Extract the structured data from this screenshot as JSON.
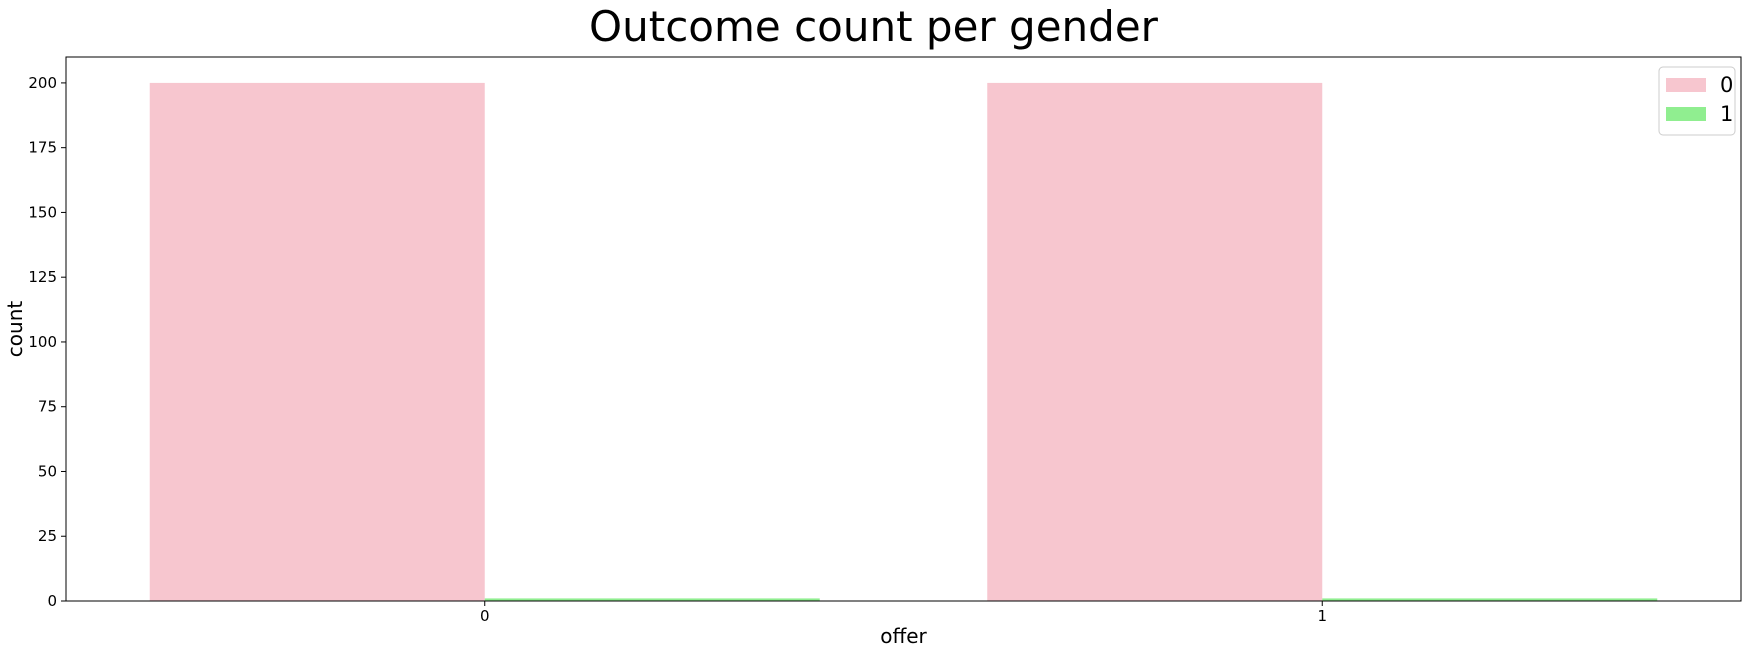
{
  "chart_data": {
    "type": "bar",
    "title": "Outcome count per gender",
    "xlabel": "offer",
    "ylabel": "count",
    "categories": [
      "0",
      "1"
    ],
    "series": [
      {
        "name": "0",
        "values": [
          200,
          200
        ],
        "color": "#f7c6cf"
      },
      {
        "name": "1",
        "values": [
          1,
          1
        ],
        "color": "#90ee90"
      }
    ],
    "ylim": [
      0,
      210
    ],
    "yticks": [
      0,
      25,
      50,
      75,
      100,
      125,
      150,
      175,
      200
    ],
    "grid": false,
    "legend": {
      "placement": "top-right"
    }
  }
}
